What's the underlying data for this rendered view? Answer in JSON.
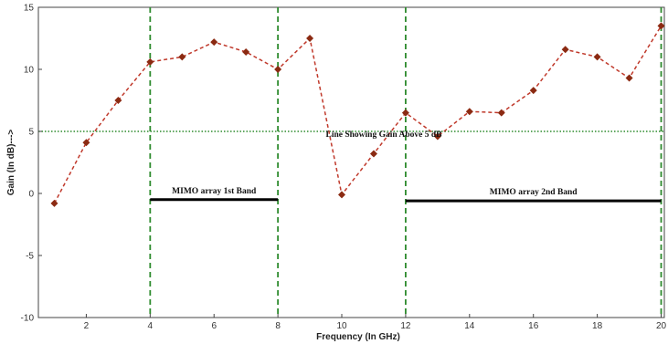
{
  "chart_data": {
    "type": "line",
    "title": "",
    "xlabel": "Frequency (In GHz)",
    "ylabel": "Gain (In dB)--->",
    "xlim": [
      0.5,
      20.1
    ],
    "ylim": [
      -10,
      15
    ],
    "x_ticks": [
      2,
      4,
      6,
      8,
      10,
      12,
      14,
      16,
      18,
      20
    ],
    "y_ticks": [
      -10,
      -5,
      0,
      5,
      10,
      15
    ],
    "grid": false,
    "series": [
      {
        "color": "#c0392b",
        "marker_color": "#8b2a12",
        "line_style": "dashed",
        "marker": "diamond",
        "x": [
          1,
          2,
          3,
          4,
          5,
          6,
          7,
          8,
          9,
          10,
          11,
          12,
          13,
          14,
          15,
          16,
          17,
          18,
          19,
          20
        ],
        "y": [
          -0.8,
          4.1,
          7.5,
          10.6,
          11.0,
          12.2,
          11.4,
          10.0,
          12.5,
          -0.1,
          3.2,
          6.5,
          4.6,
          6.6,
          6.5,
          8.3,
          11.6,
          11.0,
          9.3,
          13.5
        ]
      }
    ],
    "reference_line": {
      "y": 5,
      "color": "#2e8b2e",
      "style": "dotted",
      "label": "Line Showing Gain Above 5 dB"
    },
    "vertical_lines": {
      "x": [
        4,
        8,
        12,
        20
      ],
      "color": "#2e8b2e",
      "style": "dashed"
    },
    "bands": [
      {
        "label": "MIMO array 1st Band",
        "x_start": 4,
        "x_end": 8,
        "y": -0.5
      },
      {
        "label": "MIMO array 2nd Band",
        "x_start": 12,
        "x_end": 20,
        "y": -0.6
      }
    ]
  }
}
